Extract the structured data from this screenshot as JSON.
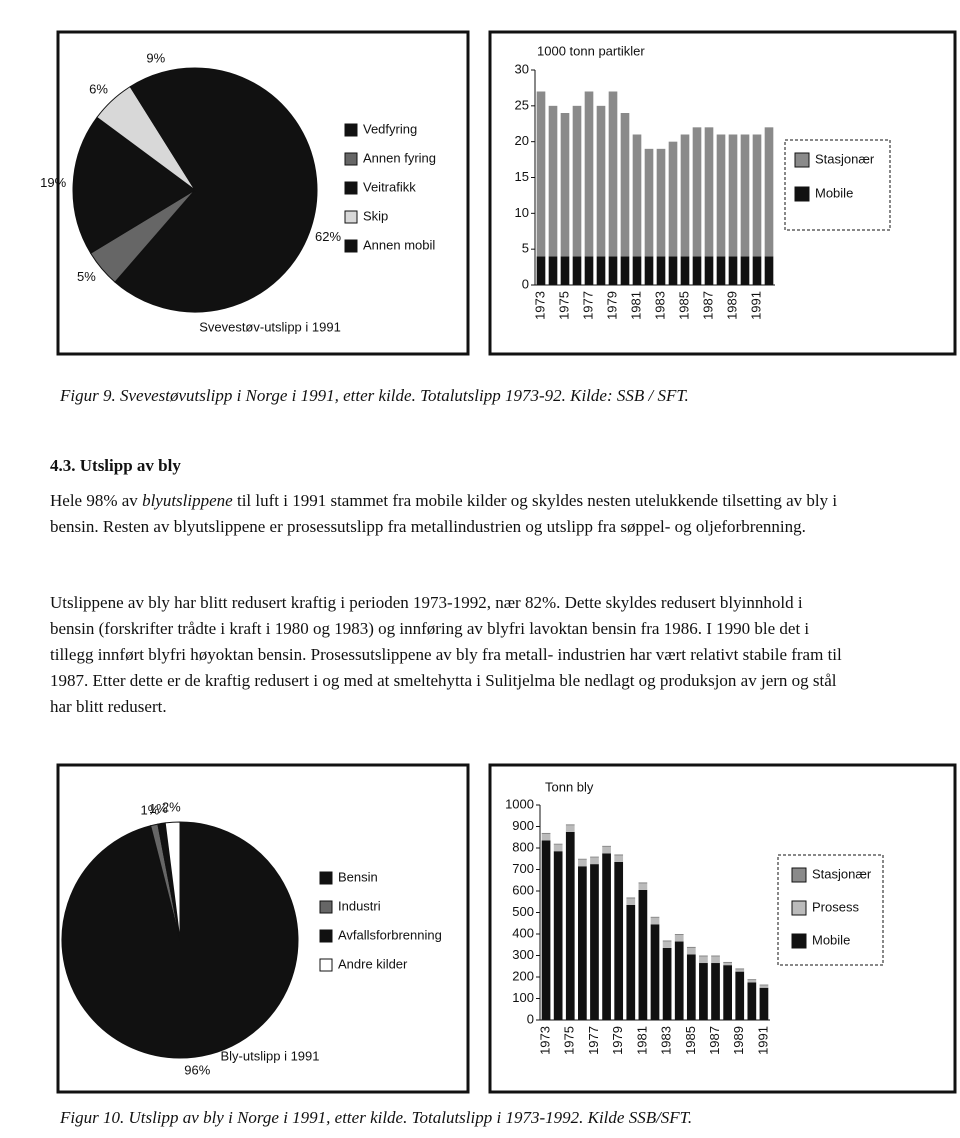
{
  "chart_data": [
    {
      "type": "pie",
      "title": "Svevestøv-utslipp i 1991",
      "categories": [
        "Vedfyring",
        "Annen fyring",
        "Veitrafikk",
        "Skip",
        "Annen mobil"
      ],
      "values": [
        62,
        5,
        19,
        6,
        9
      ],
      "value_labels": [
        "62%",
        "5%",
        "19%",
        "6%",
        "9%"
      ],
      "colors": [
        "#111111",
        "#666666",
        "#111111",
        "#d8d8d8",
        "#111111"
      ]
    },
    {
      "type": "bar",
      "title": "1000 tonn partikler",
      "categories": [
        "1973",
        null,
        "1975",
        null,
        "1977",
        null,
        "1979",
        null,
        "1981",
        null,
        "1983",
        null,
        "1985",
        null,
        "1987",
        null,
        "1989",
        null,
        "1991",
        null
      ],
      "series": [
        {
          "name": "Stasjonær",
          "color": "#8a8a8a",
          "values": [
            23,
            21,
            20,
            21,
            23,
            21,
            23,
            20,
            17,
            15,
            15,
            16,
            17,
            18,
            18,
            17,
            17,
            17,
            17,
            18
          ]
        },
        {
          "name": "Mobile",
          "color": "#111111",
          "values": [
            4,
            4,
            4,
            4,
            4,
            4,
            4,
            4,
            4,
            4,
            4,
            4,
            4,
            4,
            4,
            4,
            4,
            4,
            4,
            4
          ]
        }
      ],
      "ylim": [
        0,
        30
      ],
      "yticks": [
        0,
        5,
        10,
        15,
        20,
        25,
        30
      ],
      "stacked": true
    },
    {
      "type": "pie",
      "title": "Bly-utslipp i 1991",
      "categories": [
        "Bensin",
        "Industri",
        "Avfallsforbrenning",
        "Andre kilder"
      ],
      "values": [
        96,
        1,
        1,
        2
      ],
      "value_labels": [
        "96%",
        "1%",
        "1%",
        "2%"
      ],
      "colors": [
        "#111111",
        "#666666",
        "#111111",
        "#ffffff"
      ]
    },
    {
      "type": "bar",
      "title": "Tonn bly",
      "categories": [
        "1973",
        null,
        "1975",
        null,
        "1977",
        null,
        "1979",
        null,
        "1981",
        null,
        "1983",
        null,
        "1985",
        null,
        "1987",
        null,
        "1989",
        null,
        "1991"
      ],
      "series": [
        {
          "name": "Stasjonær",
          "color": "#8a8a8a",
          "values": [
            5,
            5,
            5,
            5,
            5,
            5,
            5,
            5,
            5,
            5,
            5,
            5,
            5,
            5,
            5,
            5,
            5,
            5,
            5
          ]
        },
        {
          "name": "Prosess",
          "color": "#bbbbbb",
          "values": [
            30,
            30,
            30,
            30,
            30,
            30,
            30,
            30,
            30,
            30,
            30,
            30,
            30,
            30,
            30,
            10,
            10,
            10,
            10
          ]
        },
        {
          "name": "Mobile",
          "color": "#111111",
          "values": [
            835,
            785,
            875,
            715,
            725,
            775,
            735,
            535,
            605,
            445,
            335,
            365,
            305,
            265,
            265,
            255,
            225,
            175,
            150
          ]
        }
      ],
      "ylim": [
        0,
        1000
      ],
      "yticks": [
        0,
        100,
        200,
        300,
        400,
        500,
        600,
        700,
        800,
        900,
        1000
      ],
      "stacked": true
    }
  ],
  "document": {
    "caption_1": "Figur 9. Svevestøvutslipp i Norge i 1991, etter kilde. Totalutslipp 1973-92. Kilde: SSB / SFT.",
    "heading": "4.3. Utslipp av bly",
    "paragraph_1": [
      "Hele 98% av ",
      "blyutslippene",
      " til luft i 1991 stammet fra mobile kilder og skyldes nesten utelukkende tilsetting av bly i bensin. Resten av blyutslippene er prosessutslipp fra metallindustrien og utslipp fra søppel- og oljeforbrenning."
    ],
    "paragraph_2": "Utslippene av bly har blitt redusert kraftig i perioden 1973-1992, nær 82%. Dette skyldes redusert blyinnhold i bensin (forskrifter trådte i kraft i 1980 og 1983) og innføring av blyfri lavoktan bensin fra 1986. I 1990 ble det i tillegg innført blyfri høyoktan bensin. Prosessutslippene av bly fra metall- industrien har vært relativt stabile fram til 1987. Etter dette er de kraftig redusert i og med at smeltehytta i Sulitjelma ble nedlagt og produksjon av jern og stål har blitt redusert.",
    "caption_2": "Figur 10. Utslipp av bly i Norge i 1991, etter kilde. Totalutslipp i 1973-1992. Kilde SSB/SFT."
  }
}
